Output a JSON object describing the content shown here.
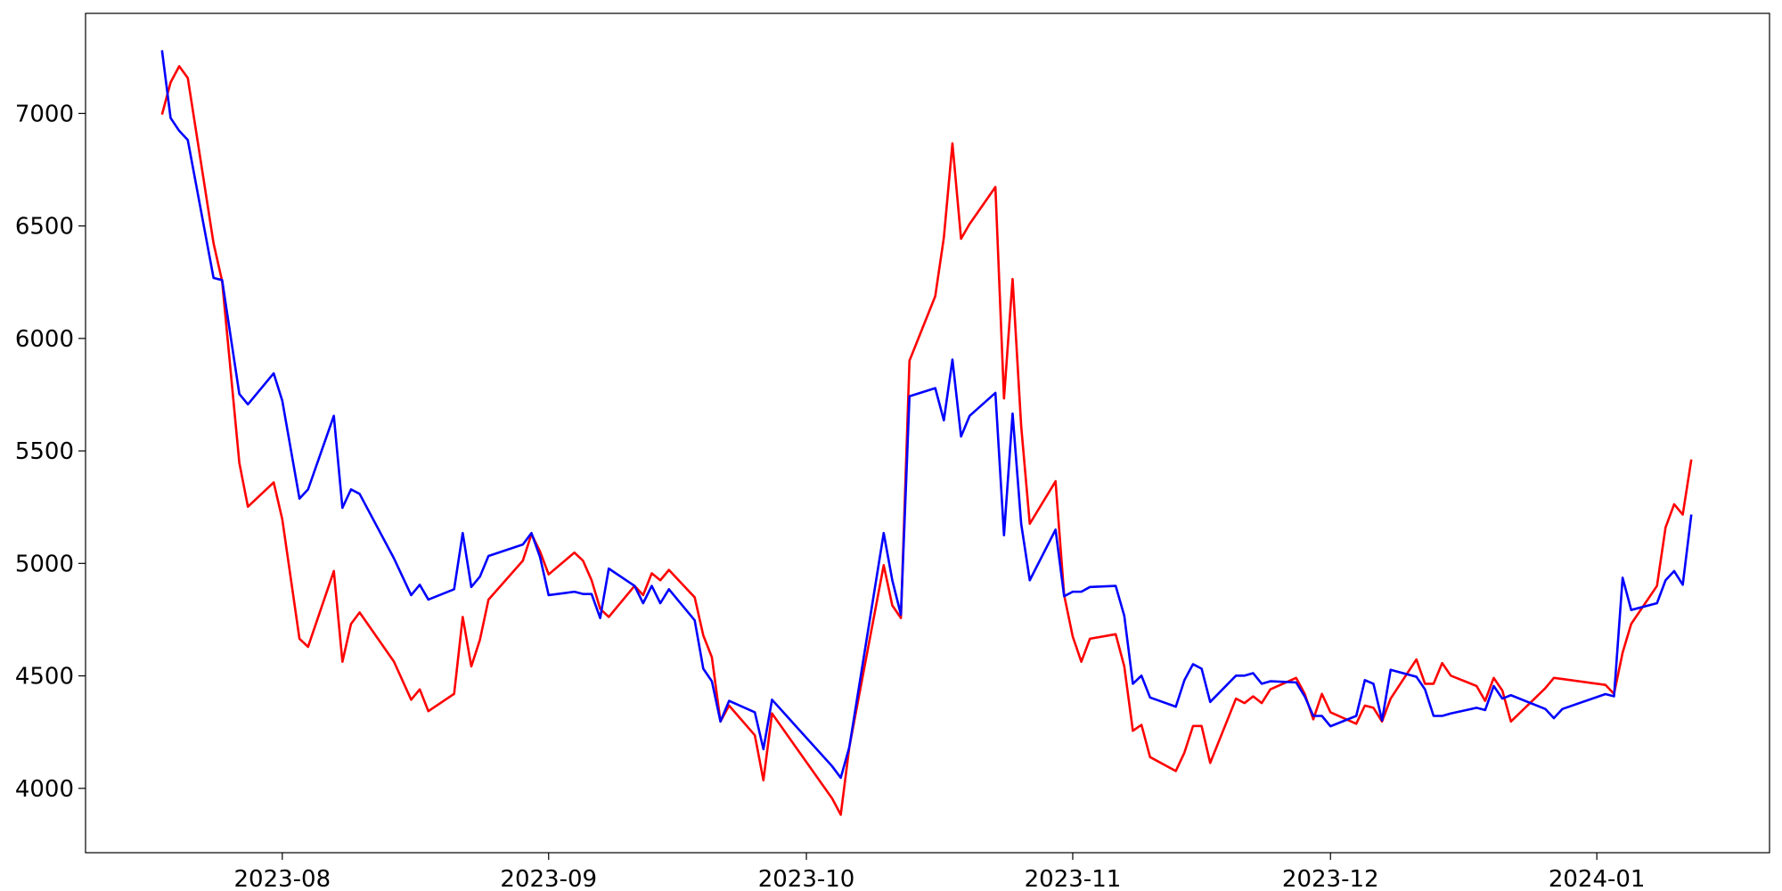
{
  "chart_data": {
    "type": "line",
    "x": [
      19556,
      19557,
      19558,
      19559,
      19562,
      19563,
      19565,
      19566,
      19569,
      19570,
      19572,
      19573,
      19576,
      19577,
      19578,
      19579,
      19583,
      19585,
      19586,
      19587,
      19590,
      19591,
      19592,
      19593,
      19594,
      19598,
      19599,
      19600,
      19601,
      19604,
      19605,
      19606,
      19607,
      19608,
      19611,
      19612,
      19613,
      19614,
      19615,
      19618,
      19619,
      19620,
      19621,
      19622,
      19625,
      19626,
      19627,
      19634,
      19635,
      19636,
      19640,
      19641,
      19642,
      19643,
      19646,
      19647,
      19648,
      19649,
      19650,
      19653,
      19654,
      19655,
      19656,
      19657,
      19660,
      19661,
      19662,
      19663,
      19664,
      19667,
      19668,
      19669,
      19670,
      19671,
      19674,
      19675,
      19676,
      19677,
      19678,
      19681,
      19682,
      19683,
      19684,
      19685,
      19688,
      19689,
      19690,
      19691,
      19692,
      19695,
      19696,
      19697,
      19698,
      19699,
      19702,
      19703,
      19704,
      19705,
      19706,
      19709,
      19710,
      19711,
      19712,
      19713,
      19717,
      19718,
      19719,
      19724,
      19725,
      19726,
      19727,
      19730,
      19731,
      19732,
      19733,
      19734
    ],
    "series": [
      {
        "color": "#ff0000",
        "values": [
          6995,
          7138,
          7210,
          7158,
          6423,
          6254,
          5447,
          5252,
          5360,
          5196,
          4665,
          4629,
          4966,
          4563,
          4731,
          4782,
          4563,
          4394,
          4440,
          4343,
          4420,
          4762,
          4542,
          4660,
          4839,
          5012,
          5130,
          5053,
          4951,
          5048,
          5012,
          4925,
          4798,
          4762,
          4900,
          4859,
          4956,
          4925,
          4971,
          4849,
          4680,
          4583,
          4297,
          4368,
          4236,
          4036,
          4333,
          3955,
          3883,
          4184,
          4992,
          4813,
          4757,
          5901,
          6188,
          6448,
          6867,
          6443,
          6509,
          6673,
          5733,
          6264,
          5610,
          5176,
          5365,
          4859,
          4675,
          4563,
          4665,
          4685,
          4542,
          4256,
          4282,
          4139,
          4077,
          4159,
          4277,
          4277,
          4113,
          4399,
          4379,
          4409,
          4379,
          4440,
          4491,
          4420,
          4307,
          4420,
          4338,
          4287,
          4368,
          4358,
          4297,
          4399,
          4573,
          4465,
          4465,
          4557,
          4501,
          4455,
          4389,
          4491,
          4435,
          4297,
          4445,
          4491,
          4486,
          4460,
          4420,
          4603,
          4731,
          4900,
          5160,
          5263,
          5217,
          5462
        ]
      },
      {
        "color": "#0000ff",
        "values": [
          7281,
          6980,
          6923,
          6882,
          6269,
          6259,
          5753,
          5707,
          5845,
          5723,
          5288,
          5329,
          5656,
          5247,
          5329,
          5309,
          5022,
          4859,
          4905,
          4839,
          4885,
          5135,
          4895,
          4941,
          5033,
          5084,
          5135,
          5028,
          4859,
          4874,
          4864,
          4864,
          4757,
          4977,
          4900,
          4823,
          4900,
          4823,
          4885,
          4747,
          4532,
          4476,
          4297,
          4389,
          4338,
          4174,
          4394,
          4098,
          4047,
          4184,
          5135,
          4925,
          4772,
          5743,
          5779,
          5636,
          5906,
          5564,
          5656,
          5758,
          5125,
          5666,
          5176,
          4925,
          5150,
          4854,
          4874,
          4874,
          4895,
          4900,
          4767,
          4465,
          4501,
          4404,
          4363,
          4481,
          4552,
          4532,
          4384,
          4501,
          4501,
          4512,
          4465,
          4476,
          4471,
          4409,
          4322,
          4322,
          4276,
          4322,
          4481,
          4465,
          4302,
          4527,
          4496,
          4440,
          4322,
          4322,
          4333,
          4358,
          4348,
          4455,
          4399,
          4414,
          4353,
          4312,
          4353,
          4419,
          4409,
          4936,
          4793,
          4823,
          4925,
          4966,
          4905,
          5217
        ]
      }
    ],
    "xlim": [
      19547.1,
      19743.1
    ],
    "xticks": [
      {
        "value": 19570,
        "label": "2023-08"
      },
      {
        "value": 19601,
        "label": "2023-09"
      },
      {
        "value": 19631,
        "label": "2023-10"
      },
      {
        "value": 19662,
        "label": "2023-11"
      },
      {
        "value": 19692,
        "label": "2023-12"
      },
      {
        "value": 19723,
        "label": "2024-01"
      }
    ],
    "ylim": [
      3714,
      7445
    ],
    "yticks": [
      4000,
      4500,
      5000,
      5500,
      6000,
      6500,
      7000
    ],
    "grid": false
  }
}
